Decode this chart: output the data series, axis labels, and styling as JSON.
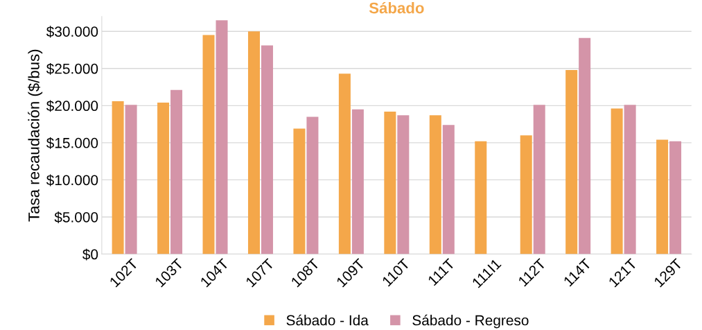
{
  "chart_data": {
    "type": "bar",
    "title": "Sábado",
    "ylabel": "Tasa recaudación ($/bus)",
    "categories": [
      "102T",
      "103T",
      "104T",
      "107T",
      "108T",
      "109T",
      "110T",
      "111T",
      "111I1",
      "112T",
      "114T",
      "121T",
      "129T"
    ],
    "series": [
      {
        "name": "Sábado - Ida",
        "color": "#f4a74a",
        "values": [
          20600,
          20400,
          29500,
          30000,
          16900,
          24300,
          19200,
          18700,
          15200,
          16000,
          24800,
          19600,
          15400
        ]
      },
      {
        "name": "Sábado - Regreso",
        "color": "#d494a8",
        "values": [
          20100,
          22100,
          31500,
          28100,
          18500,
          19500,
          18700,
          17400,
          null,
          20100,
          29100,
          20100,
          15200
        ]
      }
    ],
    "ylim": [
      0,
      32000
    ],
    "yticks": [
      {
        "value": 0,
        "label": "$0"
      },
      {
        "value": 5000,
        "label": "$5.000"
      },
      {
        "value": 10000,
        "label": "$10.000"
      },
      {
        "value": 15000,
        "label": "$15.000"
      },
      {
        "value": 20000,
        "label": "$20.000"
      },
      {
        "value": 25000,
        "label": "$25.000"
      },
      {
        "value": 30000,
        "label": "$30.000"
      }
    ],
    "grid": "y",
    "legend": "bottom"
  }
}
